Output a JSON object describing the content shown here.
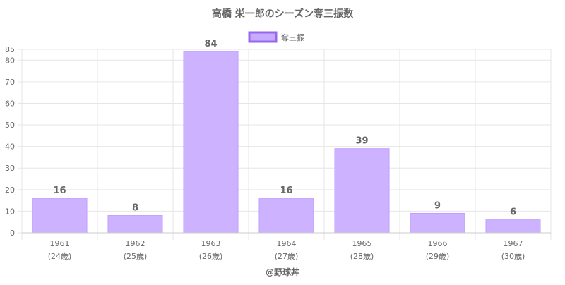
{
  "chart_data": {
    "type": "bar",
    "title": "高橋 栄一郎のシーズン奪三振数",
    "legend": {
      "label": "奪三振",
      "position": "top"
    },
    "categories": [
      "1961",
      "1962",
      "1963",
      "1964",
      "1965",
      "1966",
      "1967"
    ],
    "sublabels": [
      "(24歳)",
      "(25歳)",
      "(26歳)",
      "(27歳)",
      "(28歳)",
      "(29歳)",
      "(30歳)"
    ],
    "values": [
      16,
      8,
      84,
      16,
      39,
      9,
      6
    ],
    "ylim": [
      0,
      85
    ],
    "yticks": [
      "0",
      "10",
      "20",
      "30",
      "40",
      "50",
      "60",
      "70",
      "80",
      "85"
    ],
    "grid": true,
    "credit": "@野球丼",
    "colors": {
      "bar_fill": "#cdb3ff",
      "bar_stroke": "#c0a0ff",
      "legend_fill": "#c6acff",
      "legend_stroke": "#9966ee",
      "grid": "#e6e6e6",
      "text": "#666666"
    }
  }
}
